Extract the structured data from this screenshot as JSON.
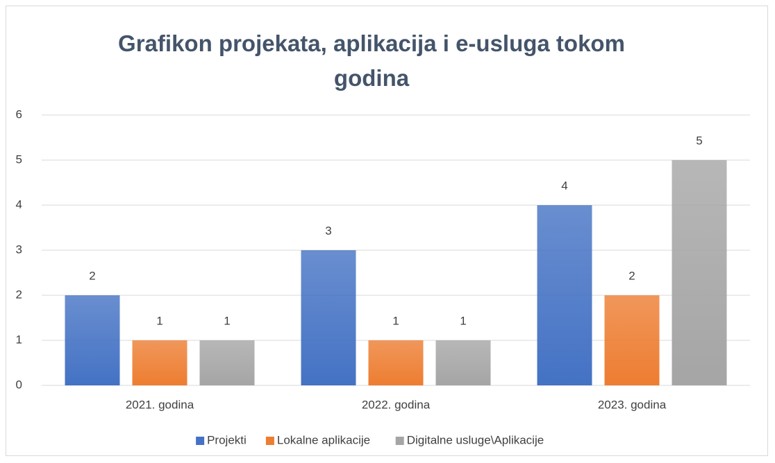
{
  "chart_data": {
    "type": "bar",
    "title": "Grafikon projekata, aplikacija i e-usluga tokom godina",
    "categories": [
      "2021. godina",
      "2022. godina",
      "2023. godina"
    ],
    "series": [
      {
        "name": "Projekti",
        "color": "#4472c4",
        "values": [
          2,
          3,
          4
        ]
      },
      {
        "name": "Lokalne aplikacije",
        "color": "#ed7d31",
        "values": [
          1,
          1,
          2
        ]
      },
      {
        "name": "Digitalne usluge\\Aplikacije",
        "color": "#a5a5a5",
        "values": [
          1,
          1,
          5
        ]
      }
    ],
    "ylim": [
      0,
      6
    ],
    "yticks": [
      0,
      1,
      2,
      3,
      4,
      5,
      6
    ],
    "grid": true,
    "legend": "bottom"
  }
}
